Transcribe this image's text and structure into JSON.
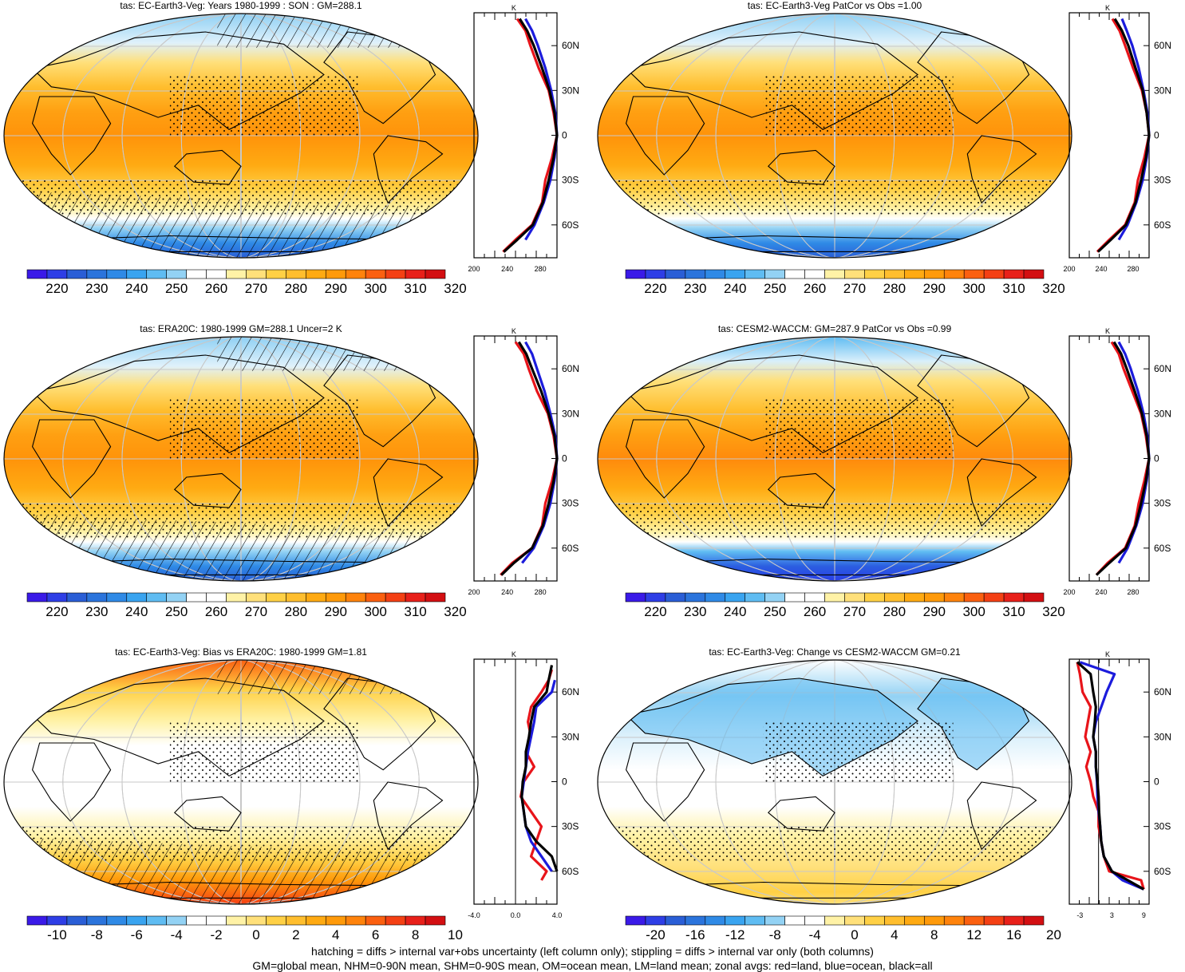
{
  "colors": {
    "red_line": "#e8141a",
    "blue_line": "#1c1cdc",
    "black_line": "#000000",
    "graticule": "#c8c8c8"
  },
  "panels": [
    {
      "id": "p1",
      "title": "tas: EC-Earth3-Veg: Years 1980-1999 : SON : GM=288.1",
      "kind": "abs",
      "hatch": "both",
      "zonal_x_ticks": [
        "200",
        "240",
        "280"
      ],
      "zonal_unit": "K"
    },
    {
      "id": "p2",
      "title": "tas: EC-Earth3-Veg PatCor vs Obs =1.00",
      "kind": "abs",
      "hatch": "none",
      "zonal_x_ticks": [
        "200",
        "240",
        "280"
      ],
      "zonal_unit": "K"
    },
    {
      "id": "p3",
      "title": "tas: ERA20C: 1980-1999 GM=288.1 Uncer=2 K",
      "kind": "abs",
      "hatch": "both",
      "zonal_x_ticks": [
        "200",
        "240",
        "280"
      ],
      "zonal_unit": "K"
    },
    {
      "id": "p4",
      "title": "tas: CESM2-WACCM: GM=287.9 PatCor vs Obs =0.99",
      "kind": "abs",
      "hatch": "none",
      "zonal_x_ticks": [
        "200",
        "240",
        "280"
      ],
      "zonal_unit": "K"
    },
    {
      "id": "p5",
      "title": "tas: EC-Earth3-Veg: Bias vs ERA20C: 1980-1999  GM=1.81",
      "kind": "bias",
      "hatch": "both",
      "zonal_x_ticks": [
        "-4.0",
        "0.0",
        "4.0"
      ],
      "zonal_unit": "K"
    },
    {
      "id": "p6",
      "title": "tas: EC-Earth3-Veg: Change vs CESM2-WACCM GM=0.21",
      "kind": "change",
      "hatch": "none",
      "zonal_x_ticks": [
        "-3",
        "3",
        "9"
      ],
      "zonal_unit": "K"
    }
  ],
  "lat_ticks_abs": [
    "60N",
    "30N",
    "0",
    "30S",
    "60S"
  ],
  "colorbars": {
    "abs": {
      "labels": [
        "220",
        "230",
        "240",
        "250",
        "260",
        "270",
        "280",
        "290",
        "300",
        "310",
        "320"
      ],
      "colors": [
        "#3a1ae8",
        "#2e3ee6",
        "#2a5ed6",
        "#2b74dc",
        "#2f8ae6",
        "#39a4f0",
        "#5fbcf2",
        "#93d2f4",
        "#ffffff",
        "#ffffff",
        "#fff2a6",
        "#ffe07a",
        "#ffd045",
        "#ffbe2e",
        "#ffaa12",
        "#ff9a0a",
        "#ff830c",
        "#fb6010",
        "#f44014",
        "#e8201a",
        "#d30f12"
      ]
    },
    "bias": {
      "labels": [
        "-10",
        "-8",
        "-6",
        "-4",
        "-2",
        "0",
        "2",
        "4",
        "6",
        "8",
        "10"
      ],
      "colors": [
        "#3a1ae8",
        "#2e3ee6",
        "#2a5ed6",
        "#2b74dc",
        "#2f8ae6",
        "#39a4f0",
        "#5fbcf2",
        "#93d2f4",
        "#ffffff",
        "#ffffff",
        "#fff2a6",
        "#ffe07a",
        "#ffd045",
        "#ffbe2e",
        "#ffaa12",
        "#ff9a0a",
        "#ff830c",
        "#fb6010",
        "#f44014",
        "#e8201a",
        "#d30f12"
      ]
    },
    "change": {
      "labels": [
        "-20",
        "-16",
        "-12",
        "-8",
        "-4",
        "0",
        "4",
        "8",
        "12",
        "16",
        "20"
      ],
      "colors": [
        "#3a1ae8",
        "#2e3ee6",
        "#2a5ed6",
        "#2b74dc",
        "#2f8ae6",
        "#39a4f0",
        "#5fbcf2",
        "#93d2f4",
        "#ffffff",
        "#ffffff",
        "#fff2a6",
        "#ffe07a",
        "#ffd045",
        "#ffbe2e",
        "#ffaa12",
        "#ff9a0a",
        "#ff830c",
        "#fb6010",
        "#f44014",
        "#e8201a",
        "#d30f12"
      ]
    }
  },
  "footer": {
    "line1": "hatching = diffs > internal var+obs uncertainty (left column only); stippling = diffs > internal var only (both columns)",
    "line2": "GM=global mean, NHM=0-90N mean, SHM=0-90S mean, OM=ocean mean, LM=land mean; zonal avgs: red=land, blue=ocean, black=all"
  },
  "chart_data": [
    {
      "type": "line",
      "panel": "p1",
      "ylabel": "",
      "xlabel": "K",
      "x_ticks": [
        200,
        240,
        280
      ],
      "y_ticks": [
        "60N",
        "30N",
        "0",
        "30S",
        "60S"
      ],
      "series": [
        {
          "name": "red=land",
          "lat": [
            78,
            70,
            60,
            45,
            30,
            15,
            0,
            -15,
            -30,
            -45,
            -60,
            -70,
            -78
          ],
          "values": [
            252,
            262,
            268,
            278,
            290,
            296,
            300,
            294,
            286,
            282,
            270,
            250,
            235
          ]
        },
        {
          "name": "blue=ocean",
          "lat": [
            78,
            70,
            60,
            45,
            30,
            15,
            0,
            -15,
            -30,
            -45,
            -60,
            -70
          ],
          "values": [
            262,
            270,
            277,
            286,
            293,
            298,
            300,
            297,
            292,
            284,
            273,
            262
          ]
        },
        {
          "name": "black=all",
          "lat": [
            78,
            70,
            60,
            45,
            30,
            15,
            0,
            -15,
            -30,
            -45,
            -60,
            -70,
            -78
          ],
          "values": [
            255,
            264,
            272,
            282,
            291,
            297,
            300,
            296,
            290,
            283,
            271,
            252,
            236
          ]
        }
      ]
    },
    {
      "type": "line",
      "panel": "p2",
      "ylabel": "",
      "xlabel": "K",
      "x_ticks": [
        200,
        240,
        280
      ],
      "y_ticks": [
        "60N",
        "30N",
        "0",
        "30S",
        "60S"
      ],
      "series": [
        {
          "name": "red=land",
          "lat": [
            78,
            70,
            60,
            45,
            30,
            15,
            0,
            -15,
            -30,
            -45,
            -60,
            -70,
            -78
          ],
          "values": [
            254,
            263,
            270,
            280,
            291,
            297,
            300,
            294,
            286,
            282,
            270,
            250,
            235
          ]
        },
        {
          "name": "blue=ocean",
          "lat": [
            78,
            70,
            60,
            45,
            30,
            15,
            0,
            -15,
            -30,
            -45,
            -60,
            -70
          ],
          "values": [
            266,
            272,
            279,
            287,
            293,
            298,
            300,
            297,
            292,
            284,
            273,
            262
          ]
        },
        {
          "name": "black=all",
          "lat": [
            78,
            70,
            60,
            45,
            30,
            15,
            0,
            -15,
            -30,
            -45,
            -60,
            -70,
            -78
          ],
          "values": [
            257,
            266,
            274,
            283,
            292,
            297,
            300,
            296,
            290,
            283,
            271,
            252,
            236
          ]
        }
      ]
    },
    {
      "type": "line",
      "panel": "p3",
      "ylabel": "",
      "xlabel": "K",
      "x_ticks": [
        200,
        240,
        280
      ],
      "y_ticks": [
        "60N",
        "30N",
        "0",
        "30S",
        "60S"
      ],
      "series": [
        {
          "name": "red=land",
          "lat": [
            78,
            70,
            60,
            45,
            30,
            15,
            0,
            -15,
            -30,
            -45,
            -60,
            -70,
            -78
          ],
          "values": [
            250,
            260,
            266,
            276,
            289,
            296,
            300,
            294,
            286,
            282,
            270,
            246,
            232
          ]
        },
        {
          "name": "blue=ocean",
          "lat": [
            78,
            70,
            60,
            45,
            30,
            15,
            0,
            -15,
            -30,
            -45,
            -60,
            -70
          ],
          "values": [
            262,
            270,
            276,
            285,
            292,
            298,
            300,
            297,
            292,
            284,
            272,
            258
          ]
        },
        {
          "name": "black=all",
          "lat": [
            78,
            70,
            60,
            45,
            30,
            15,
            0,
            -15,
            -30,
            -45,
            -60,
            -70,
            -78
          ],
          "values": [
            254,
            263,
            270,
            281,
            290,
            297,
            300,
            296,
            290,
            283,
            270,
            248,
            233
          ]
        }
      ]
    },
    {
      "type": "line",
      "panel": "p4",
      "ylabel": "",
      "xlabel": "K",
      "x_ticks": [
        200,
        240,
        280
      ],
      "y_ticks": [
        "60N",
        "30N",
        "0",
        "30S",
        "60S"
      ],
      "series": [
        {
          "name": "red=land",
          "lat": [
            78,
            70,
            60,
            45,
            30,
            15,
            0,
            -15,
            -30,
            -45,
            -60,
            -70,
            -78
          ],
          "values": [
            253,
            262,
            268,
            279,
            290,
            296,
            300,
            294,
            287,
            282,
            270,
            248,
            234
          ]
        },
        {
          "name": "blue=ocean",
          "lat": [
            78,
            70,
            60,
            45,
            30,
            15,
            0,
            -15,
            -30,
            -45,
            -60,
            -70
          ],
          "values": [
            262,
            270,
            277,
            286,
            293,
            298,
            300,
            297,
            292,
            284,
            273,
            262
          ]
        },
        {
          "name": "black=all",
          "lat": [
            78,
            70,
            60,
            45,
            30,
            15,
            0,
            -15,
            -30,
            -45,
            -60,
            -70,
            -78
          ],
          "values": [
            256,
            265,
            272,
            282,
            291,
            297,
            300,
            296,
            290,
            283,
            271,
            250,
            234
          ]
        }
      ]
    },
    {
      "type": "line",
      "panel": "p5",
      "ylabel": "",
      "xlabel": "K",
      "x_ticks": [
        -4.0,
        0.0,
        4.0
      ],
      "y_ticks": [
        "60N",
        "30N",
        "0",
        "30S",
        "60S"
      ],
      "series": [
        {
          "name": "red=land",
          "lat": [
            75,
            68,
            60,
            50,
            40,
            30,
            20,
            10,
            0,
            -10,
            -20,
            -30,
            -40,
            -50,
            -60,
            -66
          ],
          "values": [
            3.5,
            3.2,
            2.5,
            1.5,
            1.2,
            1.5,
            1.0,
            1.8,
            0.8,
            0.5,
            1.5,
            2.5,
            2.0,
            1.5,
            3.0,
            2.5
          ]
        },
        {
          "name": "blue=ocean",
          "lat": [
            68,
            60,
            50,
            40,
            30,
            20,
            10,
            0,
            -10,
            -20,
            -30,
            -40,
            -50,
            -60
          ],
          "values": [
            3.8,
            3.5,
            2.0,
            1.8,
            1.5,
            1.2,
            1.0,
            0.8,
            0.6,
            0.8,
            1.0,
            1.5,
            2.5,
            3.5
          ]
        },
        {
          "name": "black=all",
          "lat": [
            78,
            68,
            60,
            50,
            40,
            30,
            20,
            10,
            0,
            -10,
            -20,
            -30,
            -40,
            -50,
            -60
          ],
          "values": [
            3.5,
            3.2,
            3.0,
            1.8,
            1.5,
            1.3,
            1.0,
            1.0,
            0.7,
            0.6,
            0.8,
            1.0,
            2.0,
            3.5,
            4.0
          ]
        }
      ]
    },
    {
      "type": "line",
      "panel": "p6",
      "ylabel": "",
      "xlabel": "K",
      "x_ticks": [
        -3,
        3,
        9
      ],
      "y_ticks": [
        "60N",
        "30N",
        "0",
        "30S",
        "60S"
      ],
      "series": [
        {
          "name": "red=land",
          "lat": [
            80,
            72,
            60,
            50,
            40,
            30,
            20,
            10,
            0,
            -10,
            -20,
            -30,
            -40,
            -50,
            -60,
            -66,
            -72
          ],
          "values": [
            -3.5,
            -3.0,
            -2.5,
            -1.0,
            -1.5,
            -2.0,
            -1.0,
            -1.8,
            -1.0,
            -0.5,
            0.5,
            0.5,
            1.0,
            1.5,
            2.5,
            8.5,
            9.0
          ]
        },
        {
          "name": "blue=ocean",
          "lat": [
            80,
            72,
            60,
            50,
            40,
            30,
            20,
            10,
            0,
            -10,
            -20,
            -30,
            -40,
            -50,
            -60,
            -66,
            -72
          ],
          "values": [
            -3.0,
            3.5,
            2.0,
            1.0,
            0.0,
            -0.5,
            0.0,
            0.0,
            0.2,
            0.3,
            0.5,
            0.8,
            1.0,
            1.5,
            3.0,
            5.0,
            9.0
          ]
        },
        {
          "name": "black=all",
          "lat": [
            80,
            72,
            60,
            50,
            40,
            30,
            20,
            10,
            0,
            -10,
            -20,
            -30,
            -40,
            -50,
            -60,
            -66,
            -72
          ],
          "values": [
            -3.5,
            -1.0,
            -0.5,
            0.0,
            -0.2,
            -0.5,
            0.0,
            0.0,
            0.3,
            0.5,
            0.6,
            0.8,
            1.0,
            1.5,
            3.0,
            6.0,
            9.0
          ]
        }
      ]
    }
  ]
}
